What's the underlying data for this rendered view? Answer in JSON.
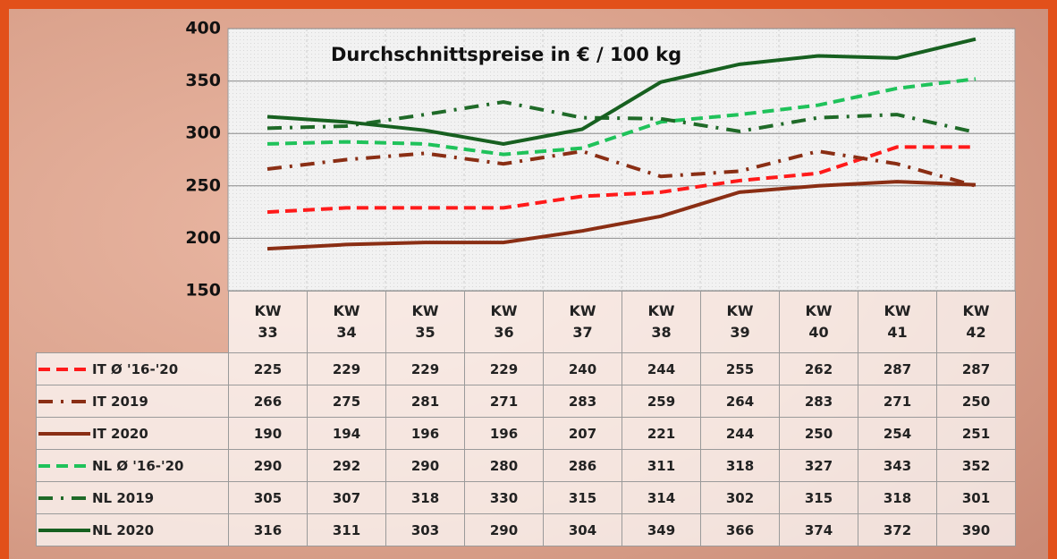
{
  "chart_data": {
    "type": "line",
    "title": "Durchschnittspreise in € / 100 kg",
    "categories": [
      "KW\n33",
      "KW\n34",
      "KW\n35",
      "KW\n36",
      "KW\n37",
      "KW\n38",
      "KW\n39",
      "KW\n40",
      "KW\n41",
      "KW\n42"
    ],
    "series": [
      {
        "name": "IT Ø '16-'20",
        "color": "#ff1a1a",
        "style": "dashed",
        "values": [
          225,
          229,
          229,
          229,
          240,
          244,
          255,
          262,
          287,
          287
        ]
      },
      {
        "name": "IT 2019",
        "color": "#8a2e14",
        "style": "dash-dot",
        "values": [
          266,
          275,
          281,
          271,
          283,
          259,
          264,
          283,
          271,
          250
        ]
      },
      {
        "name": "IT 2020",
        "color": "#8a2e14",
        "style": "solid",
        "values": [
          190,
          194,
          196,
          196,
          207,
          221,
          244,
          250,
          254,
          251
        ]
      },
      {
        "name": "NL Ø '16-'20",
        "color": "#1fc25a",
        "style": "dashed",
        "values": [
          290,
          292,
          290,
          280,
          286,
          311,
          318,
          327,
          343,
          352
        ]
      },
      {
        "name": "NL 2019",
        "color": "#1f6a28",
        "style": "dash-dot",
        "values": [
          305,
          307,
          318,
          330,
          315,
          314,
          302,
          315,
          318,
          301
        ]
      },
      {
        "name": "NL 2020",
        "color": "#176020",
        "style": "solid",
        "values": [
          316,
          311,
          303,
          290,
          304,
          349,
          366,
          374,
          372,
          390
        ]
      }
    ],
    "ylim": [
      150,
      400
    ],
    "yticks": [
      150,
      200,
      250,
      300,
      350,
      400
    ],
    "grid": true
  }
}
